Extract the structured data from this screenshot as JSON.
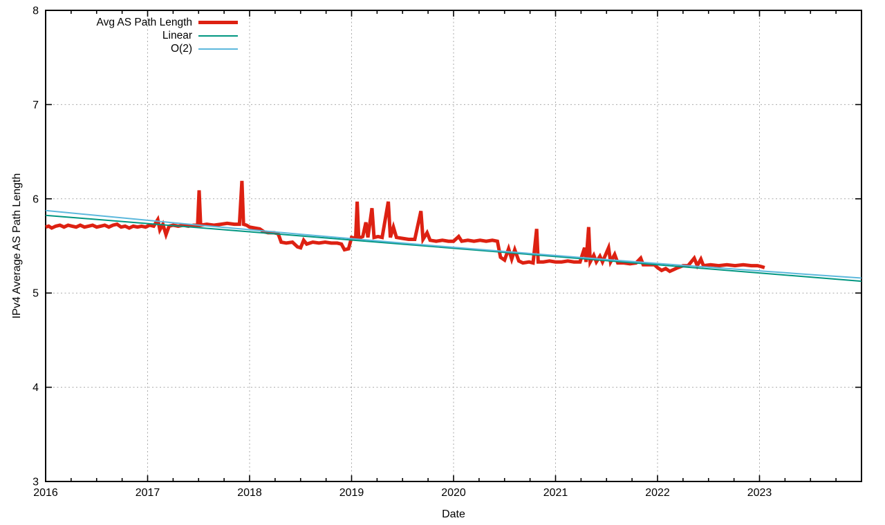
{
  "chart_data": {
    "type": "line",
    "title": "",
    "xlabel": "Date",
    "ylabel": "IPv4 Average AS Path Length",
    "xlim": [
      2016,
      2024
    ],
    "ylim": [
      3,
      8
    ],
    "grid": true,
    "legend_position": "top-left",
    "x_ticks": [
      {
        "v": 2016,
        "label": "2016"
      },
      {
        "v": 2017,
        "label": "2017"
      },
      {
        "v": 2018,
        "label": "2018"
      },
      {
        "v": 2019,
        "label": "2019"
      },
      {
        "v": 2020,
        "label": "2020"
      },
      {
        "v": 2021,
        "label": "2021"
      },
      {
        "v": 2022,
        "label": "2022"
      },
      {
        "v": 2023,
        "label": "2023"
      },
      {
        "v": 2024,
        "label": ""
      }
    ],
    "y_ticks": [
      {
        "v": 3,
        "label": "3"
      },
      {
        "v": 4,
        "label": "4"
      },
      {
        "v": 5,
        "label": "5"
      },
      {
        "v": 6,
        "label": "6"
      },
      {
        "v": 7,
        "label": "7"
      },
      {
        "v": 8,
        "label": "8"
      }
    ],
    "x_minor_step": 0.25,
    "series": [
      {
        "name": "Avg AS Path Length",
        "color": "#dd2112",
        "width": 5,
        "points": [
          [
            2016.0,
            5.7
          ],
          [
            2016.03,
            5.71
          ],
          [
            2016.06,
            5.69
          ],
          [
            2016.1,
            5.71
          ],
          [
            2016.14,
            5.72
          ],
          [
            2016.18,
            5.7
          ],
          [
            2016.22,
            5.72
          ],
          [
            2016.26,
            5.71
          ],
          [
            2016.3,
            5.7
          ],
          [
            2016.34,
            5.72
          ],
          [
            2016.38,
            5.7
          ],
          [
            2016.42,
            5.71
          ],
          [
            2016.46,
            5.72
          ],
          [
            2016.5,
            5.7
          ],
          [
            2016.54,
            5.71
          ],
          [
            2016.58,
            5.72
          ],
          [
            2016.62,
            5.7
          ],
          [
            2016.66,
            5.72
          ],
          [
            2016.7,
            5.73
          ],
          [
            2016.74,
            5.7
          ],
          [
            2016.78,
            5.71
          ],
          [
            2016.82,
            5.69
          ],
          [
            2016.86,
            5.71
          ],
          [
            2016.9,
            5.7
          ],
          [
            2016.94,
            5.71
          ],
          [
            2016.98,
            5.7
          ],
          [
            2017.02,
            5.72
          ],
          [
            2017.06,
            5.71
          ],
          [
            2017.1,
            5.78
          ],
          [
            2017.12,
            5.67
          ],
          [
            2017.15,
            5.73
          ],
          [
            2017.18,
            5.62
          ],
          [
            2017.21,
            5.71
          ],
          [
            2017.25,
            5.72
          ],
          [
            2017.3,
            5.71
          ],
          [
            2017.35,
            5.72
          ],
          [
            2017.4,
            5.71
          ],
          [
            2017.45,
            5.72
          ],
          [
            2017.49,
            5.72
          ],
          [
            2017.505,
            6.09
          ],
          [
            2017.52,
            5.72
          ],
          [
            2017.58,
            5.73
          ],
          [
            2017.65,
            5.72
          ],
          [
            2017.72,
            5.73
          ],
          [
            2017.78,
            5.74
          ],
          [
            2017.85,
            5.73
          ],
          [
            2017.9,
            5.73
          ],
          [
            2017.925,
            6.19
          ],
          [
            2017.94,
            5.73
          ],
          [
            2017.97,
            5.72
          ],
          [
            2018.0,
            5.7
          ],
          [
            2018.05,
            5.69
          ],
          [
            2018.1,
            5.68
          ],
          [
            2018.14,
            5.65
          ],
          [
            2018.18,
            5.64
          ],
          [
            2018.24,
            5.64
          ],
          [
            2018.28,
            5.63
          ],
          [
            2018.31,
            5.54
          ],
          [
            2018.36,
            5.53
          ],
          [
            2018.42,
            5.54
          ],
          [
            2018.47,
            5.49
          ],
          [
            2018.5,
            5.48
          ],
          [
            2018.53,
            5.56
          ],
          [
            2018.56,
            5.52
          ],
          [
            2018.62,
            5.54
          ],
          [
            2018.68,
            5.53
          ],
          [
            2018.74,
            5.54
          ],
          [
            2018.8,
            5.53
          ],
          [
            2018.86,
            5.53
          ],
          [
            2018.9,
            5.52
          ],
          [
            2018.93,
            5.46
          ],
          [
            2018.97,
            5.47
          ],
          [
            2019.0,
            5.59
          ],
          [
            2019.04,
            5.58
          ],
          [
            2019.055,
            5.97
          ],
          [
            2019.07,
            5.58
          ],
          [
            2019.11,
            5.6
          ],
          [
            2019.14,
            5.75
          ],
          [
            2019.16,
            5.59
          ],
          [
            2019.2,
            5.9
          ],
          [
            2019.22,
            5.59
          ],
          [
            2019.26,
            5.6
          ],
          [
            2019.3,
            5.59
          ],
          [
            2019.36,
            5.97
          ],
          [
            2019.38,
            5.59
          ],
          [
            2019.41,
            5.7
          ],
          [
            2019.44,
            5.59
          ],
          [
            2019.5,
            5.58
          ],
          [
            2019.56,
            5.57
          ],
          [
            2019.62,
            5.57
          ],
          [
            2019.68,
            5.87
          ],
          [
            2019.7,
            5.57
          ],
          [
            2019.74,
            5.64
          ],
          [
            2019.77,
            5.56
          ],
          [
            2019.83,
            5.55
          ],
          [
            2019.89,
            5.56
          ],
          [
            2019.95,
            5.55
          ],
          [
            2020.0,
            5.55
          ],
          [
            2020.05,
            5.6
          ],
          [
            2020.08,
            5.55
          ],
          [
            2020.14,
            5.56
          ],
          [
            2020.2,
            5.55
          ],
          [
            2020.26,
            5.56
          ],
          [
            2020.32,
            5.55
          ],
          [
            2020.38,
            5.56
          ],
          [
            2020.43,
            5.55
          ],
          [
            2020.46,
            5.38
          ],
          [
            2020.5,
            5.35
          ],
          [
            2020.54,
            5.47
          ],
          [
            2020.57,
            5.36
          ],
          [
            2020.6,
            5.46
          ],
          [
            2020.64,
            5.34
          ],
          [
            2020.68,
            5.32
          ],
          [
            2020.74,
            5.33
          ],
          [
            2020.78,
            5.32
          ],
          [
            2020.815,
            5.68
          ],
          [
            2020.83,
            5.33
          ],
          [
            2020.88,
            5.33
          ],
          [
            2020.94,
            5.34
          ],
          [
            2021.0,
            5.33
          ],
          [
            2021.06,
            5.33
          ],
          [
            2021.12,
            5.34
          ],
          [
            2021.18,
            5.33
          ],
          [
            2021.24,
            5.33
          ],
          [
            2021.285,
            5.48
          ],
          [
            2021.3,
            5.33
          ],
          [
            2021.325,
            5.7
          ],
          [
            2021.34,
            5.33
          ],
          [
            2021.375,
            5.4
          ],
          [
            2021.4,
            5.33
          ],
          [
            2021.435,
            5.39
          ],
          [
            2021.46,
            5.33
          ],
          [
            2021.52,
            5.48
          ],
          [
            2021.54,
            5.33
          ],
          [
            2021.58,
            5.41
          ],
          [
            2021.61,
            5.32
          ],
          [
            2021.67,
            5.32
          ],
          [
            2021.73,
            5.31
          ],
          [
            2021.79,
            5.32
          ],
          [
            2021.835,
            5.37
          ],
          [
            2021.86,
            5.3
          ],
          [
            2021.92,
            5.3
          ],
          [
            2021.97,
            5.3
          ],
          [
            2022.0,
            5.27
          ],
          [
            2022.04,
            5.24
          ],
          [
            2022.08,
            5.26
          ],
          [
            2022.12,
            5.23
          ],
          [
            2022.16,
            5.25
          ],
          [
            2022.2,
            5.27
          ],
          [
            2022.25,
            5.29
          ],
          [
            2022.3,
            5.29
          ],
          [
            2022.36,
            5.37
          ],
          [
            2022.39,
            5.29
          ],
          [
            2022.425,
            5.36
          ],
          [
            2022.45,
            5.29
          ],
          [
            2022.52,
            5.3
          ],
          [
            2022.6,
            5.29
          ],
          [
            2022.68,
            5.3
          ],
          [
            2022.76,
            5.29
          ],
          [
            2022.84,
            5.3
          ],
          [
            2022.92,
            5.29
          ],
          [
            2022.98,
            5.29
          ],
          [
            2023.02,
            5.28
          ],
          [
            2023.05,
            5.27
          ]
        ]
      },
      {
        "name": "Linear",
        "color": "#009680",
        "width": 2,
        "points": [
          [
            2016,
            5.825
          ],
          [
            2024,
            5.125
          ]
        ]
      },
      {
        "name": "O(2)",
        "color": "#5cb8dc",
        "width": 2,
        "points": [
          [
            2016,
            5.875
          ],
          [
            2016.5,
            5.823
          ],
          [
            2017,
            5.772
          ],
          [
            2017.5,
            5.721
          ],
          [
            2018,
            5.672
          ],
          [
            2018.5,
            5.624
          ],
          [
            2019,
            5.577
          ],
          [
            2019.5,
            5.53
          ],
          [
            2020,
            5.485
          ],
          [
            2020.5,
            5.441
          ],
          [
            2021,
            5.398
          ],
          [
            2021.5,
            5.355
          ],
          [
            2022,
            5.314
          ],
          [
            2022.5,
            5.274
          ],
          [
            2023,
            5.235
          ],
          [
            2023.5,
            5.196
          ],
          [
            2024,
            5.159
          ]
        ]
      }
    ],
    "colors": {
      "grid": "#a9a9a9",
      "axis": "#000000"
    }
  }
}
